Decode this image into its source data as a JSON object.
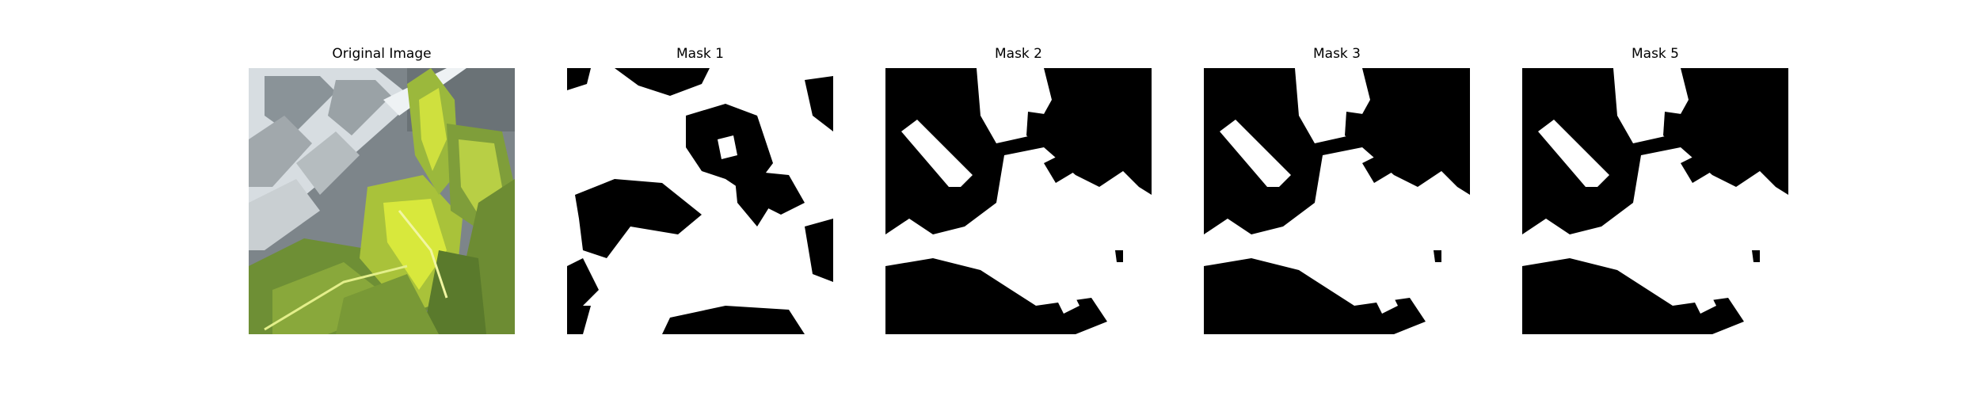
{
  "panels": [
    {
      "id": "original",
      "title": "Original Image"
    },
    {
      "id": "mask1",
      "title": "Mask 1"
    },
    {
      "id": "mask2",
      "title": "Mask 2"
    },
    {
      "id": "mask3",
      "title": "Mask 3"
    },
    {
      "id": "mask5",
      "title": "Mask 5"
    }
  ],
  "colors": {
    "mask_foreground": "#ffffff",
    "mask_background": "#000000",
    "leaf_dark": "#5f7d35",
    "leaf_mid": "#8fae3e",
    "leaf_bright": "#d6e63a",
    "window_frame": "#e6ecef",
    "window_glass": "#8e969b"
  }
}
